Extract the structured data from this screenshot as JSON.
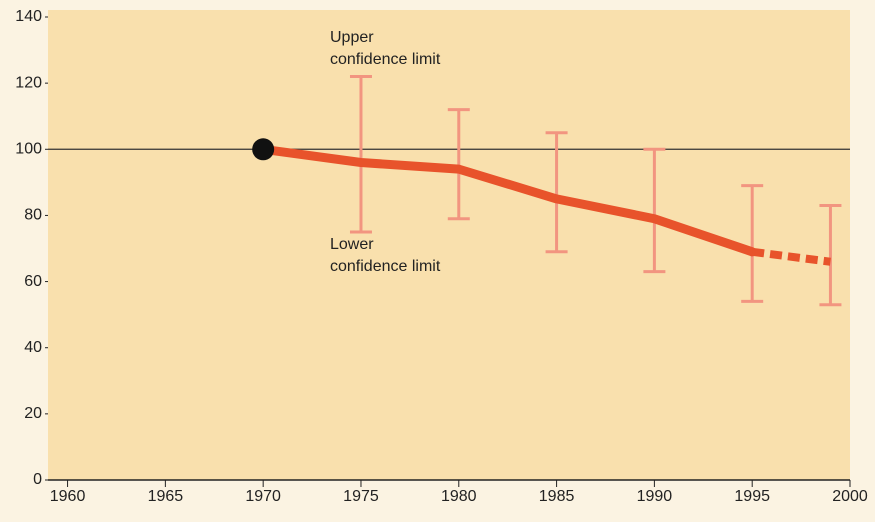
{
  "chart_data": {
    "type": "line",
    "x": [
      1970,
      1975,
      1980,
      1985,
      1990,
      1995,
      1999
    ],
    "values": [
      100,
      96,
      94,
      85,
      79,
      69,
      66
    ],
    "lower": [
      null,
      75,
      79,
      69,
      63,
      54,
      53
    ],
    "upper": [
      null,
      122,
      112,
      105,
      100,
      89,
      83
    ],
    "color": "#e8532b",
    "error_color": "#f29580",
    "dashed_last_segment": true,
    "first_point_marker": true,
    "reference_line": 100,
    "xlim": [
      1959,
      2000
    ],
    "xticks": [
      1960,
      1965,
      1970,
      1975,
      1980,
      1985,
      1990,
      1995,
      2000
    ],
    "ylim": [
      0,
      140
    ],
    "yticks": [
      0,
      20,
      40,
      60,
      80,
      100,
      120,
      140
    ],
    "annotations": [
      {
        "lines": [
          "Upper",
          "confidence limit"
        ]
      },
      {
        "lines": [
          "Lower",
          "confidence limit"
        ]
      }
    ]
  }
}
